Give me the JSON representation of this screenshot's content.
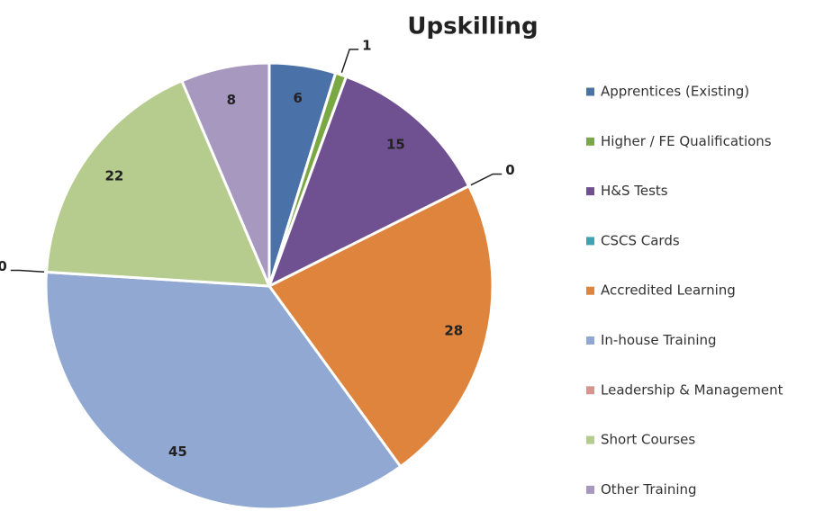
{
  "chart_data": {
    "type": "pie",
    "title": "Upskilling",
    "categories": [
      "Apprentices (Existing)",
      "Higher / FE Qualifications",
      "H&S Tests",
      "CSCS Cards",
      "Accredited Learning",
      "In-house Training",
      "Leadership & Management",
      "Short Courses",
      "Other Training"
    ],
    "values": [
      6,
      1,
      15,
      0,
      28,
      45,
      0,
      22,
      8
    ],
    "colors": [
      "#4a72a8",
      "#79a844",
      "#6f5191",
      "#3ea3b8",
      "#de843c",
      "#90a8d2",
      "#d89590",
      "#b5cc8e",
      "#a798c0"
    ],
    "legend": "right"
  }
}
